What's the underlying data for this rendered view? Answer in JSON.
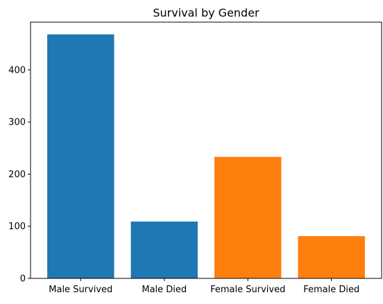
{
  "chart_data": {
    "type": "bar",
    "title": "Survival by Gender",
    "xlabel": "",
    "ylabel": "",
    "categories": [
      "Male Survived",
      "Male Died",
      "Female Survived",
      "Female Died"
    ],
    "values": [
      468,
      109,
      233,
      81
    ],
    "bar_colors": [
      "#1f77b4",
      "#1f77b4",
      "#ff7f0e",
      "#ff7f0e"
    ],
    "ylim": [
      0,
      491.4
    ],
    "yticks": [
      0,
      100,
      200,
      300,
      400
    ],
    "grid": false,
    "legend": "none"
  }
}
